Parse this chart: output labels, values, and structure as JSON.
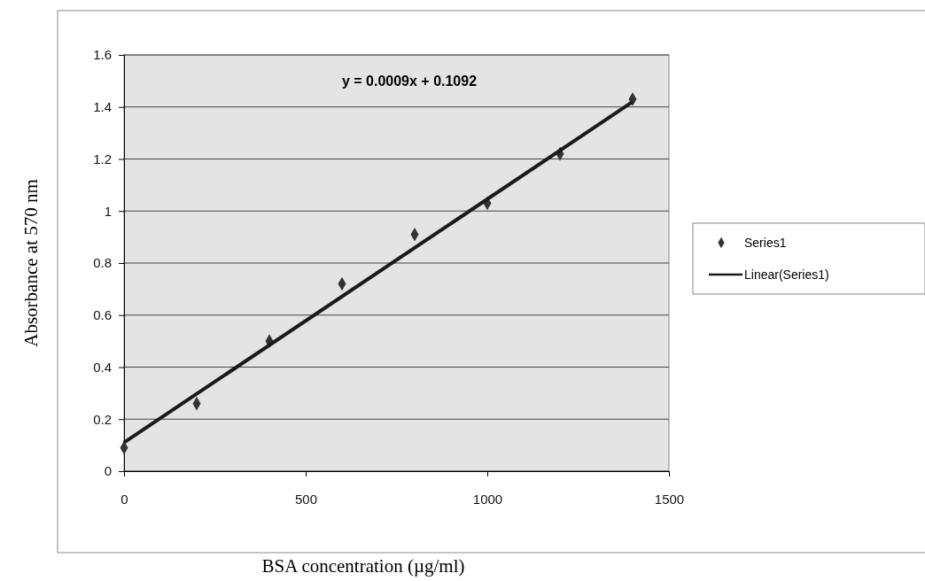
{
  "chart_data": {
    "type": "scatter",
    "xlabel": "BSA concentration (µg/ml)",
    "ylabel": "Absorbance at 570 nm",
    "x": [
      0,
      200,
      400,
      600,
      800,
      1000,
      1200,
      1400
    ],
    "series": [
      {
        "name": "Series1",
        "color": "#333333",
        "marker": "diamond",
        "values": [
          0.09,
          0.26,
          0.5,
          0.72,
          0.91,
          1.03,
          1.22,
          1.43
        ]
      },
      {
        "name": "Linear(Series1)",
        "type": "line",
        "color": "#1a1a1a",
        "x": [
          0,
          1400
        ],
        "values": [
          0.11,
          1.42
        ],
        "line_style": "solid"
      }
    ],
    "annotations": [
      "y = 0.0009x + 0.1092"
    ],
    "xlim": [
      0,
      1500
    ],
    "xticks": [
      0,
      500,
      1000,
      1500
    ],
    "ylim": [
      0,
      1.6
    ],
    "yticks": [
      0,
      0.2,
      0.4,
      0.6,
      0.8,
      1,
      1.2,
      1.4,
      1.6
    ],
    "grid": "y",
    "legend": "right"
  }
}
